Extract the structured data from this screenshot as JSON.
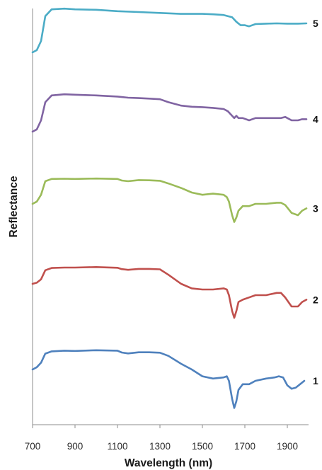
{
  "chart_data": {
    "type": "line",
    "xlabel": "Wavelength (nm)",
    "ylabel": "Reflectance",
    "xlim": [
      700,
      2000
    ],
    "x_ticks": [
      700,
      900,
      1100,
      1300,
      1500,
      1700,
      1900
    ],
    "y_ticks_shown": false,
    "grid": false,
    "legend": "none",
    "offset_note_hidden": true,
    "series": [
      {
        "name": "1",
        "color": "#4F81BD",
        "points": [
          [
            700,
            0.0
          ],
          [
            720,
            0.01
          ],
          [
            740,
            0.03
          ],
          [
            760,
            0.07
          ],
          [
            790,
            0.08
          ],
          [
            850,
            0.083
          ],
          [
            900,
            0.082
          ],
          [
            1000,
            0.085
          ],
          [
            1100,
            0.083
          ],
          [
            1120,
            0.075
          ],
          [
            1150,
            0.071
          ],
          [
            1200,
            0.076
          ],
          [
            1250,
            0.076
          ],
          [
            1300,
            0.074
          ],
          [
            1340,
            0.06
          ],
          [
            1400,
            0.025
          ],
          [
            1450,
            0.0
          ],
          [
            1500,
            -0.03
          ],
          [
            1550,
            -0.04
          ],
          [
            1600,
            -0.035
          ],
          [
            1615,
            -0.03
          ],
          [
            1625,
            -0.05
          ],
          [
            1640,
            -0.13
          ],
          [
            1650,
            -0.17
          ],
          [
            1660,
            -0.14
          ],
          [
            1670,
            -0.09
          ],
          [
            1690,
            -0.065
          ],
          [
            1720,
            -0.065
          ],
          [
            1750,
            -0.05
          ],
          [
            1800,
            -0.04
          ],
          [
            1840,
            -0.035
          ],
          [
            1860,
            -0.03
          ],
          [
            1880,
            -0.035
          ],
          [
            1900,
            -0.07
          ],
          [
            1920,
            -0.085
          ],
          [
            1940,
            -0.08
          ],
          [
            1960,
            -0.065
          ],
          [
            1980,
            -0.05
          ]
        ]
      },
      {
        "name": "2",
        "color": "#C0504D",
        "points": [
          [
            700,
            0.0
          ],
          [
            720,
            0.005
          ],
          [
            740,
            0.02
          ],
          [
            760,
            0.06
          ],
          [
            790,
            0.07
          ],
          [
            850,
            0.072
          ],
          [
            900,
            0.072
          ],
          [
            1000,
            0.074
          ],
          [
            1100,
            0.071
          ],
          [
            1120,
            0.065
          ],
          [
            1150,
            0.062
          ],
          [
            1200,
            0.066
          ],
          [
            1250,
            0.066
          ],
          [
            1300,
            0.064
          ],
          [
            1340,
            0.04
          ],
          [
            1400,
            0.0
          ],
          [
            1450,
            -0.02
          ],
          [
            1500,
            -0.025
          ],
          [
            1550,
            -0.025
          ],
          [
            1600,
            -0.02
          ],
          [
            1615,
            -0.025
          ],
          [
            1625,
            -0.05
          ],
          [
            1640,
            -0.12
          ],
          [
            1650,
            -0.15
          ],
          [
            1660,
            -0.12
          ],
          [
            1670,
            -0.08
          ],
          [
            1690,
            -0.07
          ],
          [
            1720,
            -0.06
          ],
          [
            1750,
            -0.05
          ],
          [
            1800,
            -0.05
          ],
          [
            1850,
            -0.04
          ],
          [
            1870,
            -0.04
          ],
          [
            1890,
            -0.06
          ],
          [
            1920,
            -0.1
          ],
          [
            1950,
            -0.1
          ],
          [
            1970,
            -0.08
          ],
          [
            1990,
            -0.07
          ]
        ]
      },
      {
        "name": "3",
        "color": "#9BBB59",
        "points": [
          [
            700,
            0.0
          ],
          [
            720,
            0.01
          ],
          [
            740,
            0.04
          ],
          [
            760,
            0.1
          ],
          [
            790,
            0.11
          ],
          [
            850,
            0.111
          ],
          [
            900,
            0.11
          ],
          [
            1000,
            0.112
          ],
          [
            1100,
            0.11
          ],
          [
            1120,
            0.103
          ],
          [
            1150,
            0.1
          ],
          [
            1200,
            0.105
          ],
          [
            1250,
            0.104
          ],
          [
            1300,
            0.102
          ],
          [
            1340,
            0.09
          ],
          [
            1400,
            0.07
          ],
          [
            1450,
            0.05
          ],
          [
            1500,
            0.04
          ],
          [
            1550,
            0.045
          ],
          [
            1600,
            0.04
          ],
          [
            1615,
            0.03
          ],
          [
            1625,
            0.01
          ],
          [
            1640,
            -0.05
          ],
          [
            1650,
            -0.08
          ],
          [
            1660,
            -0.06
          ],
          [
            1670,
            -0.03
          ],
          [
            1690,
            -0.01
          ],
          [
            1720,
            -0.01
          ],
          [
            1750,
            0.0
          ],
          [
            1800,
            0.0
          ],
          [
            1850,
            0.005
          ],
          [
            1870,
            0.005
          ],
          [
            1890,
            -0.005
          ],
          [
            1920,
            -0.04
          ],
          [
            1950,
            -0.05
          ],
          [
            1970,
            -0.03
          ],
          [
            1990,
            -0.02
          ]
        ]
      },
      {
        "name": "4",
        "color": "#8064A2",
        "points": [
          [
            700,
            0.0
          ],
          [
            720,
            0.01
          ],
          [
            740,
            0.05
          ],
          [
            760,
            0.13
          ],
          [
            790,
            0.16
          ],
          [
            850,
            0.165
          ],
          [
            900,
            0.163
          ],
          [
            1000,
            0.16
          ],
          [
            1100,
            0.155
          ],
          [
            1150,
            0.15
          ],
          [
            1200,
            0.148
          ],
          [
            1250,
            0.146
          ],
          [
            1300,
            0.143
          ],
          [
            1340,
            0.13
          ],
          [
            1400,
            0.115
          ],
          [
            1450,
            0.11
          ],
          [
            1500,
            0.108
          ],
          [
            1550,
            0.105
          ],
          [
            1600,
            0.1
          ],
          [
            1620,
            0.09
          ],
          [
            1640,
            0.07
          ],
          [
            1650,
            0.06
          ],
          [
            1660,
            0.07
          ],
          [
            1670,
            0.06
          ],
          [
            1690,
            0.06
          ],
          [
            1720,
            0.05
          ],
          [
            1750,
            0.06
          ],
          [
            1800,
            0.06
          ],
          [
            1850,
            0.06
          ],
          [
            1870,
            0.06
          ],
          [
            1890,
            0.065
          ],
          [
            1920,
            0.05
          ],
          [
            1950,
            0.05
          ],
          [
            1970,
            0.055
          ],
          [
            1990,
            0.055
          ]
        ]
      },
      {
        "name": "5",
        "color": "#4BACC6",
        "points": [
          [
            700,
            0.0
          ],
          [
            720,
            0.01
          ],
          [
            740,
            0.05
          ],
          [
            760,
            0.16
          ],
          [
            790,
            0.19
          ],
          [
            850,
            0.193
          ],
          [
            900,
            0.19
          ],
          [
            1000,
            0.188
          ],
          [
            1100,
            0.182
          ],
          [
            1200,
            0.178
          ],
          [
            1300,
            0.174
          ],
          [
            1400,
            0.17
          ],
          [
            1500,
            0.17
          ],
          [
            1550,
            0.168
          ],
          [
            1600,
            0.165
          ],
          [
            1640,
            0.155
          ],
          [
            1660,
            0.135
          ],
          [
            1680,
            0.12
          ],
          [
            1700,
            0.12
          ],
          [
            1720,
            0.115
          ],
          [
            1750,
            0.125
          ],
          [
            1800,
            0.127
          ],
          [
            1850,
            0.128
          ],
          [
            1900,
            0.127
          ],
          [
            1950,
            0.127
          ],
          [
            1990,
            0.128
          ]
        ]
      }
    ]
  }
}
